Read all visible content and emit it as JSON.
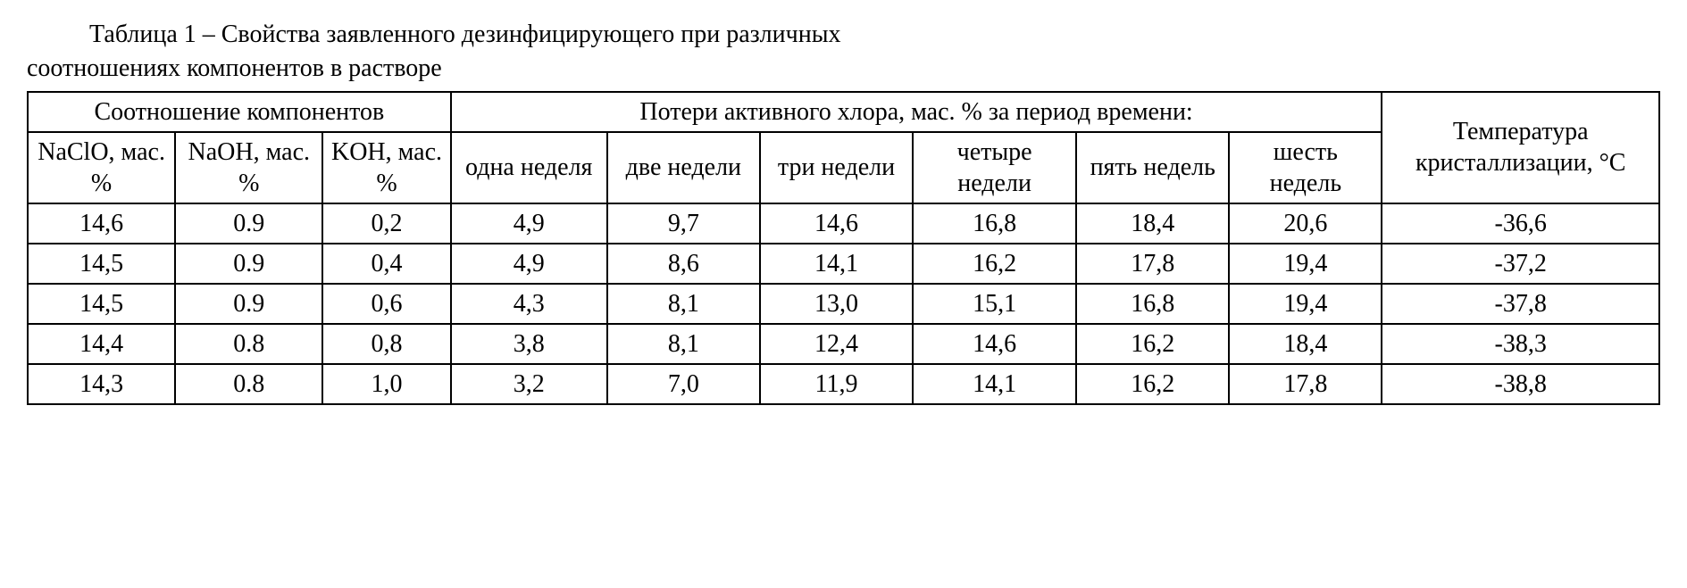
{
  "caption": {
    "line1": "Таблица 1 – Свойства заявленного дезинфицирующего при различных",
    "line2": "соотношениях компонентов в растворе"
  },
  "table": {
    "header_groups": {
      "ratio": "Соотношение компонентов",
      "loss": "Потери активного хлора, мас. % за период времени:",
      "temp": "Температура кристаллизации, °C"
    },
    "subheaders": {
      "naclo": "NaClO, мас. %",
      "naoh": "NaOH, мас. %",
      "koh": "KOH, мас. %",
      "w1": "одна неделя",
      "w2": "две недели",
      "w3": "три недели",
      "w4": "четыре недели",
      "w5": "пять недель",
      "w6": "шесть недель"
    },
    "rows": [
      [
        "14,6",
        "0.9",
        "0,2",
        "4,9",
        "9,7",
        "14,6",
        "16,8",
        "18,4",
        "20,6",
        "-36,6"
      ],
      [
        "14,5",
        "0.9",
        "0,4",
        "4,9",
        "8,6",
        "14,1",
        "16,2",
        "17,8",
        "19,4",
        "-37,2"
      ],
      [
        "14,5",
        "0.9",
        "0,6",
        "4,3",
        "8,1",
        "13,0",
        "15,1",
        "16,8",
        "19,4",
        "-37,8"
      ],
      [
        "14,4",
        "0.8",
        "0,8",
        "3,8",
        "8,1",
        "12,4",
        "14,6",
        "16,2",
        "18,4",
        "-38,3"
      ],
      [
        "14,3",
        "0.8",
        "1,0",
        "3,2",
        "7,0",
        "11,9",
        "14,1",
        "16,2",
        "17,8",
        "-38,8"
      ]
    ]
  }
}
